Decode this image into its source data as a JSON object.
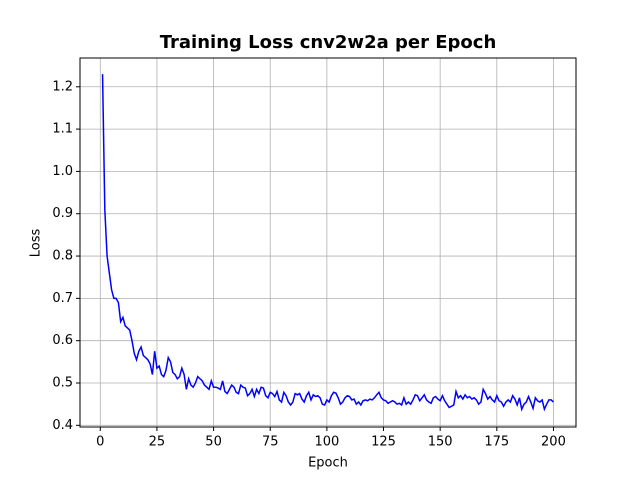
{
  "chart_data": {
    "type": "line",
    "title": "Training Loss cnv2w2a per Epoch",
    "x_label": "Epoch",
    "y_label": "Loss",
    "x": [
      1,
      2,
      3,
      4,
      5,
      6,
      7,
      8,
      9,
      10,
      11,
      12,
      13,
      14,
      15,
      16,
      17,
      18,
      19,
      20,
      21,
      22,
      23,
      24,
      25,
      26,
      27,
      28,
      29,
      30,
      31,
      32,
      33,
      34,
      35,
      36,
      37,
      38,
      39,
      40,
      41,
      42,
      43,
      44,
      45,
      46,
      47,
      48,
      49,
      50,
      51,
      52,
      53,
      54,
      55,
      56,
      57,
      58,
      59,
      60,
      61,
      62,
      63,
      64,
      65,
      66,
      67,
      68,
      69,
      70,
      71,
      72,
      73,
      74,
      75,
      76,
      77,
      78,
      79,
      80,
      81,
      82,
      83,
      84,
      85,
      86,
      87,
      88,
      89,
      90,
      91,
      92,
      93,
      94,
      95,
      96,
      97,
      98,
      99,
      100,
      101,
      102,
      103,
      104,
      105,
      106,
      107,
      108,
      109,
      110,
      111,
      112,
      113,
      114,
      115,
      116,
      117,
      118,
      119,
      120,
      121,
      122,
      123,
      124,
      125,
      126,
      127,
      128,
      129,
      130,
      131,
      132,
      133,
      134,
      135,
      136,
      137,
      138,
      139,
      140,
      141,
      142,
      143,
      144,
      145,
      146,
      147,
      148,
      149,
      150,
      151,
      152,
      153,
      154,
      155,
      156,
      157,
      158,
      159,
      160,
      161,
      162,
      163,
      164,
      165,
      166,
      167,
      168,
      169,
      170,
      171,
      172,
      173,
      174,
      175,
      176,
      177,
      178,
      179,
      180,
      181,
      182,
      183,
      184,
      185,
      186,
      187,
      188,
      189,
      190,
      191,
      192,
      193,
      194,
      195,
      196,
      197,
      198,
      199,
      200
    ],
    "values": [
      1.23,
      0.91,
      0.8,
      0.76,
      0.72,
      0.7,
      0.7,
      0.69,
      0.645,
      0.655,
      0.635,
      0.63,
      0.625,
      0.6,
      0.57,
      0.555,
      0.575,
      0.585,
      0.565,
      0.56,
      0.555,
      0.545,
      0.52,
      0.575,
      0.535,
      0.54,
      0.52,
      0.515,
      0.53,
      0.56,
      0.55,
      0.525,
      0.52,
      0.51,
      0.515,
      0.535,
      0.52,
      0.485,
      0.51,
      0.495,
      0.49,
      0.5,
      0.515,
      0.51,
      0.505,
      0.495,
      0.49,
      0.485,
      0.505,
      0.49,
      0.49,
      0.488,
      0.485,
      0.505,
      0.48,
      0.475,
      0.485,
      0.495,
      0.49,
      0.478,
      0.475,
      0.495,
      0.49,
      0.488,
      0.47,
      0.475,
      0.485,
      0.468,
      0.485,
      0.475,
      0.49,
      0.488,
      0.47,
      0.465,
      0.478,
      0.475,
      0.468,
      0.48,
      0.46,
      0.455,
      0.478,
      0.47,
      0.455,
      0.448,
      0.455,
      0.475,
      0.472,
      0.475,
      0.462,
      0.455,
      0.47,
      0.478,
      0.46,
      0.472,
      0.468,
      0.47,
      0.465,
      0.45,
      0.448,
      0.46,
      0.455,
      0.47,
      0.478,
      0.476,
      0.465,
      0.45,
      0.455,
      0.465,
      0.47,
      0.468,
      0.46,
      0.462,
      0.45,
      0.455,
      0.448,
      0.458,
      0.46,
      0.458,
      0.462,
      0.46,
      0.465,
      0.472,
      0.478,
      0.465,
      0.46,
      0.458,
      0.452,
      0.455,
      0.458,
      0.455,
      0.45,
      0.452,
      0.448,
      0.465,
      0.45,
      0.455,
      0.45,
      0.46,
      0.472,
      0.47,
      0.458,
      0.465,
      0.472,
      0.46,
      0.455,
      0.452,
      0.465,
      0.468,
      0.462,
      0.458,
      0.47,
      0.458,
      0.45,
      0.442,
      0.445,
      0.448,
      0.48,
      0.465,
      0.47,
      0.462,
      0.472,
      0.465,
      0.468,
      0.462,
      0.465,
      0.46,
      0.45,
      0.455,
      0.485,
      0.475,
      0.462,
      0.468,
      0.46,
      0.455,
      0.47,
      0.458,
      0.455,
      0.445,
      0.455,
      0.46,
      0.455,
      0.47,
      0.462,
      0.448,
      0.465,
      0.438,
      0.45,
      0.455,
      0.468,
      0.455,
      0.44,
      0.465,
      0.458,
      0.455,
      0.46,
      0.438,
      0.45,
      0.46,
      0.46,
      0.455
    ],
    "color": "#0000ff",
    "xlim": [
      -8.95,
      209.95
    ],
    "xticks": [
      0,
      25,
      50,
      75,
      100,
      125,
      150,
      175,
      200
    ],
    "ylim": [
      0.396,
      1.268
    ],
    "yticks": [
      0.4,
      0.5,
      0.6,
      0.7,
      0.8,
      0.9,
      {
        "value": 1,
        "label": "1.0"
      },
      1.1,
      1.2
    ],
    "grid": true
  }
}
